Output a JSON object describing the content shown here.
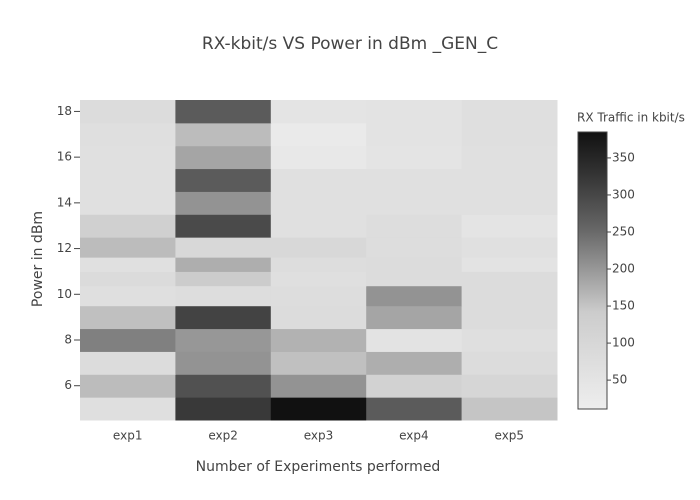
{
  "chart_data": {
    "type": "heatmap",
    "title": "RX-kbit/s VS Power in dBm _GEN_C",
    "x_label": "Number of Experiments performed",
    "y_label": "Power in dBm",
    "colorbar_title": "RX Traffic in kbit/s",
    "x": [
      "exp1",
      "exp2",
      "exp3",
      "exp4",
      "exp5"
    ],
    "y": [
      5,
      6,
      7,
      8,
      9,
      10,
      10.75,
      11.25,
      12,
      13,
      14,
      15,
      16,
      17,
      18
    ],
    "z": [
      [
        70,
        320,
        385,
        270,
        150
      ],
      [
        160,
        285,
        205,
        120,
        105
      ],
      [
        80,
        205,
        155,
        175,
        80
      ],
      [
        225,
        200,
        170,
        55,
        70
      ],
      [
        155,
        305,
        80,
        185,
        80
      ],
      [
        70,
        75,
        75,
        205,
        80
      ],
      [
        85,
        140,
        70,
        80,
        80
      ],
      [
        65,
        175,
        75,
        80,
        55
      ],
      [
        160,
        95,
        95,
        75,
        65
      ],
      [
        125,
        295,
        65,
        75,
        50
      ],
      [
        65,
        205,
        65,
        65,
        65
      ],
      [
        65,
        270,
        65,
        65,
        65
      ],
      [
        65,
        185,
        35,
        50,
        65
      ],
      [
        70,
        160,
        25,
        55,
        70
      ],
      [
        80,
        270,
        50,
        55,
        70
      ]
    ],
    "ylim": [
      4.5,
      18.5
    ],
    "yticks": [
      6,
      8,
      10,
      12,
      14,
      16,
      18
    ],
    "zlim": [
      11,
      385
    ],
    "zticks": [
      50,
      100,
      150,
      200,
      250,
      300,
      350
    ],
    "colorscale": [
      [
        0,
        "#eeeeee"
      ],
      [
        0.35,
        "#cccccc"
      ],
      [
        0.5,
        "#999999"
      ],
      [
        0.65,
        "#666666"
      ],
      [
        0.85,
        "#333333"
      ],
      [
        1,
        "#111111"
      ]
    ]
  }
}
